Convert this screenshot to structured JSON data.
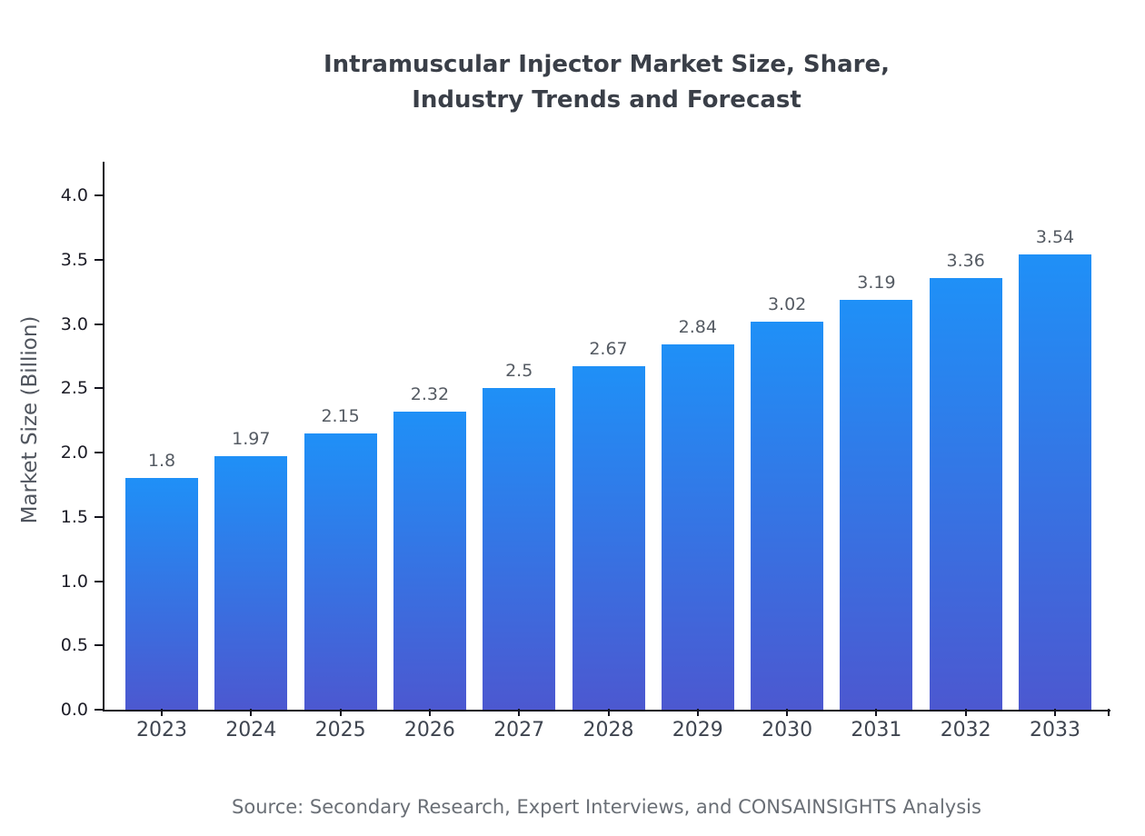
{
  "title": "Intramuscular Injector Market Size, Share, Industry Trends and Forecast",
  "source": "Source: Secondary Research, Expert Interviews, and CONSAINSIGHTS Analysis",
  "chart_data": {
    "type": "bar",
    "title": "Intramuscular Injector Market Size, Share, Industry Trends and Forecast",
    "xlabel": "",
    "ylabel": "Market Size (Billion)",
    "categories": [
      "2023",
      "2024",
      "2025",
      "2026",
      "2027",
      "2028",
      "2029",
      "2030",
      "2031",
      "2032",
      "2033"
    ],
    "values": [
      1.8,
      1.97,
      2.15,
      2.32,
      2.5,
      2.67,
      2.84,
      3.02,
      3.19,
      3.36,
      3.54
    ],
    "value_labels": [
      "1.8",
      "1.97",
      "2.15",
      "2.32",
      "2.5",
      "2.67",
      "2.84",
      "3.02",
      "3.19",
      "3.36",
      "3.54"
    ],
    "yticks": [
      0.0,
      0.5,
      1.0,
      1.5,
      2.0,
      2.5,
      3.0,
      3.5,
      4.0
    ],
    "ytick_labels": [
      "0.0",
      "0.5",
      "1.0",
      "1.5",
      "2.0",
      "2.5",
      "3.0",
      "3.5",
      "4.0"
    ],
    "ylim": [
      0,
      4.25
    ],
    "grid": false,
    "legend": "none",
    "colors": {
      "bar_gradient_top": "#1f90f7",
      "bar_gradient_bottom": "#4c58d0",
      "axis": "#14141e",
      "value_label": "#555b63"
    }
  }
}
